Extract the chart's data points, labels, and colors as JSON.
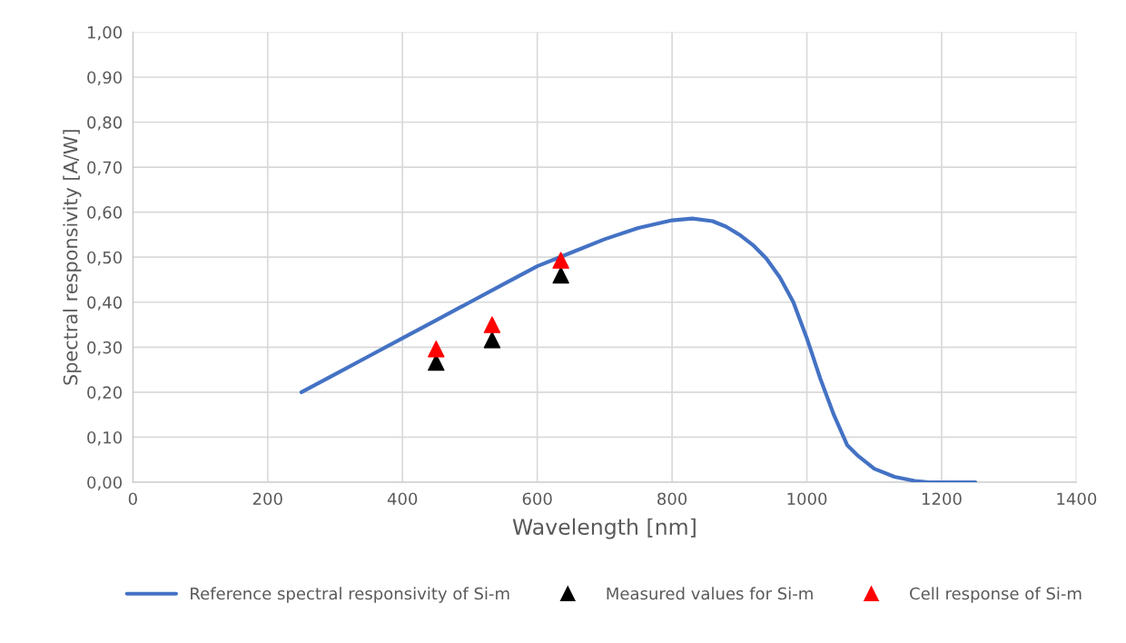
{
  "chart_data": {
    "type": "line",
    "xlabel": "Wavelength [nm]",
    "ylabel": "Spectral responsivity [A/W]",
    "xlim": [
      0,
      1400
    ],
    "xticks": [
      0,
      200,
      400,
      600,
      800,
      1000,
      1200,
      1400
    ],
    "ylim": [
      0,
      1
    ],
    "yticks": [
      {
        "value": 0,
        "label": "0,00"
      },
      {
        "value": 0.1,
        "label": "0,10"
      },
      {
        "value": 0.2,
        "label": "0,20"
      },
      {
        "value": 0.3,
        "label": "0,30"
      },
      {
        "value": 0.4,
        "label": "0,40"
      },
      {
        "value": 0.5,
        "label": "0,50"
      },
      {
        "value": 0.6,
        "label": "0,60"
      },
      {
        "value": 0.7,
        "label": "0,70"
      },
      {
        "value": 0.8,
        "label": "0,80"
      },
      {
        "value": 0.9,
        "label": "0,90"
      },
      {
        "value": 1,
        "label": "1,00"
      }
    ],
    "grid": true,
    "legend": "bottom",
    "series": [
      {
        "name": "Reference spectral responsivity of Si-m",
        "marker": "none",
        "line_style": "solid",
        "color": "#4472c4",
        "x": [
          250,
          300,
          350,
          400,
          450,
          500,
          550,
          600,
          650,
          700,
          750,
          800,
          830,
          860,
          880,
          900,
          920,
          940,
          960,
          980,
          1000,
          1020,
          1040,
          1060,
          1075,
          1100,
          1130,
          1160,
          1180,
          1250
        ],
        "values": [
          0.2,
          0.24,
          0.28,
          0.32,
          0.36,
          0.4,
          0.44,
          0.48,
          0.51,
          0.54,
          0.565,
          0.582,
          0.586,
          0.58,
          0.568,
          0.55,
          0.527,
          0.497,
          0.455,
          0.4,
          0.32,
          0.23,
          0.15,
          0.082,
          0.06,
          0.03,
          0.012,
          0.003,
          0.0,
          0.0
        ]
      },
      {
        "name": "Measured values for Si-m",
        "type": "scatter",
        "marker": "triangle",
        "color": "#000000",
        "x": [
          450,
          533,
          635
        ],
        "values": [
          0.266,
          0.316,
          0.46
        ]
      },
      {
        "name": "Cell response of Si-m",
        "type": "scatter",
        "marker": "triangle",
        "color": "#ff0000",
        "x": [
          450,
          533,
          635
        ],
        "values": [
          0.296,
          0.35,
          0.493
        ]
      }
    ]
  }
}
